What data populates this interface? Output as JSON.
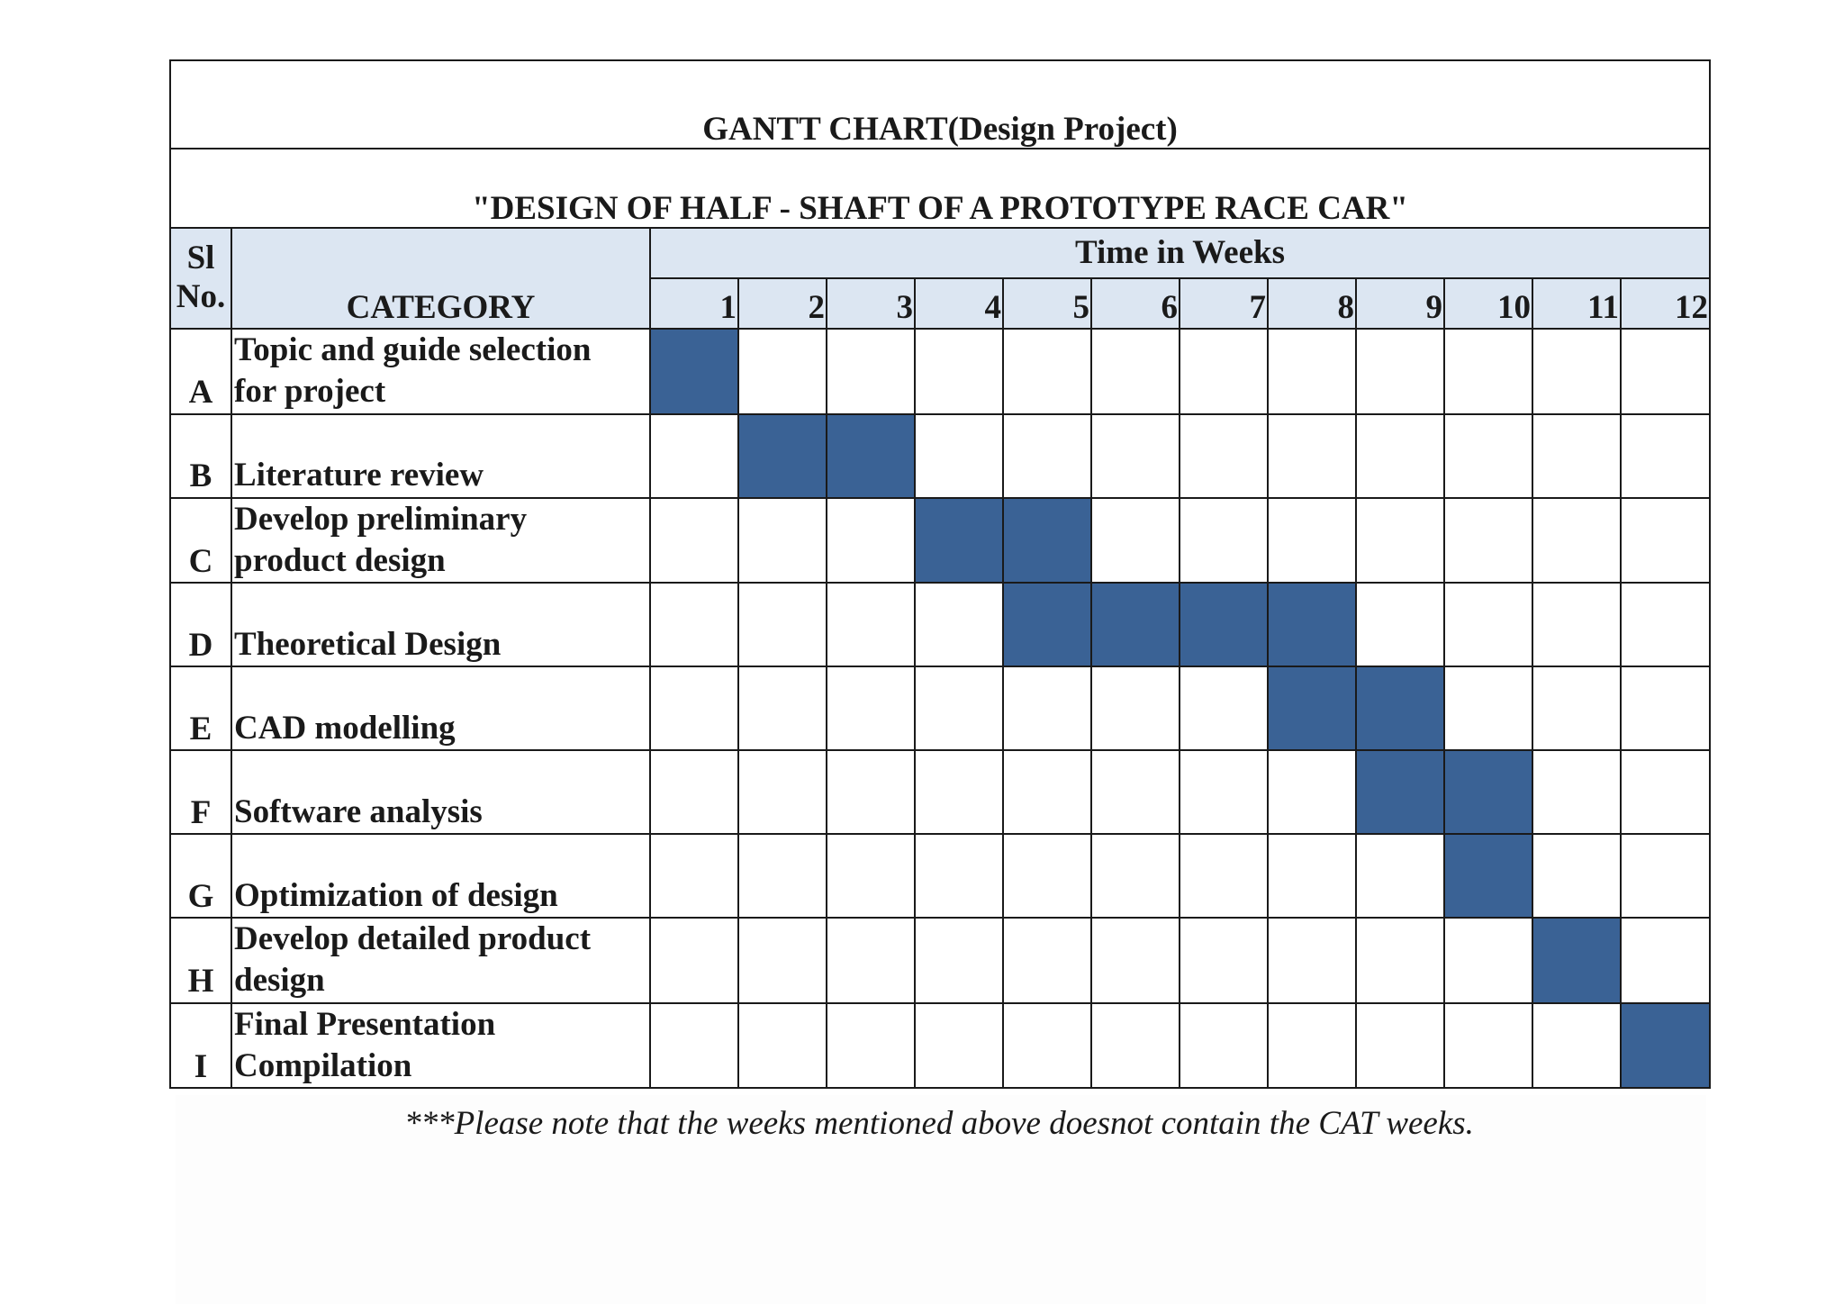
{
  "chart_data": {
    "type": "table",
    "title": "GANTT CHART(Design Project)",
    "subtitle": "\"DESIGN OF HALF - SHAFT OF A PROTOTYPE RACE CAR\"",
    "header": {
      "sl_label": "Sl No.",
      "sl_line1": "Sl",
      "sl_line2": "No.",
      "category_label": "CATEGORY",
      "time_label": "Time in Weeks"
    },
    "weeks": [
      "1",
      "2",
      "3",
      "4",
      "5",
      "6",
      "7",
      "8",
      "9",
      "10",
      "11",
      "12"
    ],
    "tasks": [
      {
        "sl": "A",
        "category": "Topic and guide selection for project",
        "lines": [
          "Topic and guide selection",
          "for project"
        ],
        "start_week": 1,
        "end_week": 1
      },
      {
        "sl": "B",
        "category": "Literature review",
        "lines": [
          "Literature review"
        ],
        "start_week": 2,
        "end_week": 3
      },
      {
        "sl": "C",
        "category": "Develop preliminary product design",
        "lines": [
          "Develop preliminary",
          "product design"
        ],
        "start_week": 4,
        "end_week": 5
      },
      {
        "sl": "D",
        "category": "Theoretical Design",
        "lines": [
          "Theoretical Design"
        ],
        "start_week": 5,
        "end_week": 8
      },
      {
        "sl": "E",
        "category": "CAD modelling",
        "lines": [
          "CAD modelling"
        ],
        "start_week": 8,
        "end_week": 9
      },
      {
        "sl": "F",
        "category": "Software analysis",
        "lines": [
          "Software analysis"
        ],
        "start_week": 9,
        "end_week": 10
      },
      {
        "sl": "G",
        "category": "Optimization of design",
        "lines": [
          "Optimization of design"
        ],
        "start_week": 10,
        "end_week": 10
      },
      {
        "sl": "H",
        "category": "Develop detailed product design",
        "lines": [
          "Develop detailed product",
          "design"
        ],
        "start_week": 11,
        "end_week": 11
      },
      {
        "sl": "I",
        "category": "Final Presentation Compilation",
        "lines": [
          "Final Presentation",
          "Compilation"
        ],
        "start_week": 12,
        "end_week": 12
      }
    ],
    "bar_color": "#3a6295",
    "header_fill": "#dce6f2",
    "note": "***Please note that the weeks mentioned above doesnot contain the CAT weeks."
  }
}
